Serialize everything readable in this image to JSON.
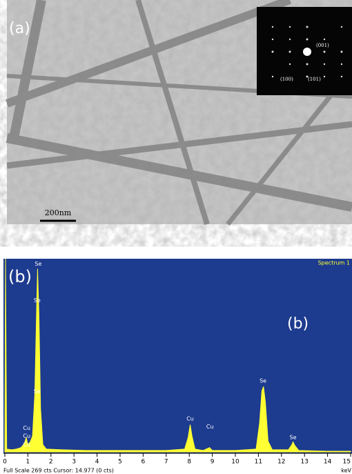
{
  "panel_a": {
    "label": "(a)",
    "inset_labels": [
      "(001)",
      "(100)",
      "(101)"
    ],
    "scale_bar": "200nm"
  },
  "chart_data": {
    "type": "area",
    "title": "Spectrum 1",
    "panel_label": "(b)",
    "inner_label": "(b)",
    "x": [
      0,
      0.03,
      0.08,
      0.3,
      0.5,
      0.7,
      0.85,
      0.93,
      1.0,
      1.1,
      1.2,
      1.3,
      1.38,
      1.42,
      1.48,
      1.55,
      1.65,
      1.8,
      2.5,
      3.5,
      5,
      7,
      7.8,
      7.95,
      8.04,
      8.12,
      8.25,
      8.6,
      8.88,
      9.0,
      10,
      10.9,
      11.05,
      11.15,
      11.22,
      11.3,
      11.42,
      11.6,
      12.3,
      12.45,
      12.5,
      12.58,
      12.75,
      14,
      15
    ],
    "values": [
      0,
      269,
      4,
      3,
      4,
      6,
      12,
      20,
      10,
      14,
      22,
      80,
      200,
      255,
      190,
      60,
      10,
      4,
      3,
      2,
      2,
      2,
      4,
      20,
      38,
      22,
      4,
      2,
      6,
      2,
      2,
      4,
      40,
      85,
      91,
      70,
      15,
      3,
      3,
      10,
      14,
      9,
      2,
      1,
      1
    ],
    "color": "#ffff33",
    "background": "#1d3b8f",
    "xlim": [
      0,
      15
    ],
    "ylim": [
      0,
      269
    ],
    "xticks": [
      0,
      1,
      2,
      3,
      4,
      5,
      6,
      7,
      8,
      9,
      10,
      11,
      12,
      13,
      14,
      15
    ],
    "x_label": "keV",
    "footer": "Full Scale 269 cts Cursor: 14.977 (0 cts)",
    "annotations": [
      {
        "text": "Se",
        "x": 1.45,
        "y": 262
      },
      {
        "text": "Se",
        "x": 1.4,
        "y": 211
      },
      {
        "text": "Se",
        "x": 1.4,
        "y": 84
      },
      {
        "text": "Cu",
        "x": 0.95,
        "y": 33
      },
      {
        "text": "Cu",
        "x": 0.95,
        "y": 22
      },
      {
        "text": "Cu",
        "x": 0.95,
        "y": 10
      },
      {
        "text": "Cu",
        "x": 8.04,
        "y": 46
      },
      {
        "text": "Cu",
        "x": 8.9,
        "y": 35
      },
      {
        "text": "Se",
        "x": 11.2,
        "y": 99
      },
      {
        "text": "Se",
        "x": 12.5,
        "y": 20
      }
    ]
  }
}
